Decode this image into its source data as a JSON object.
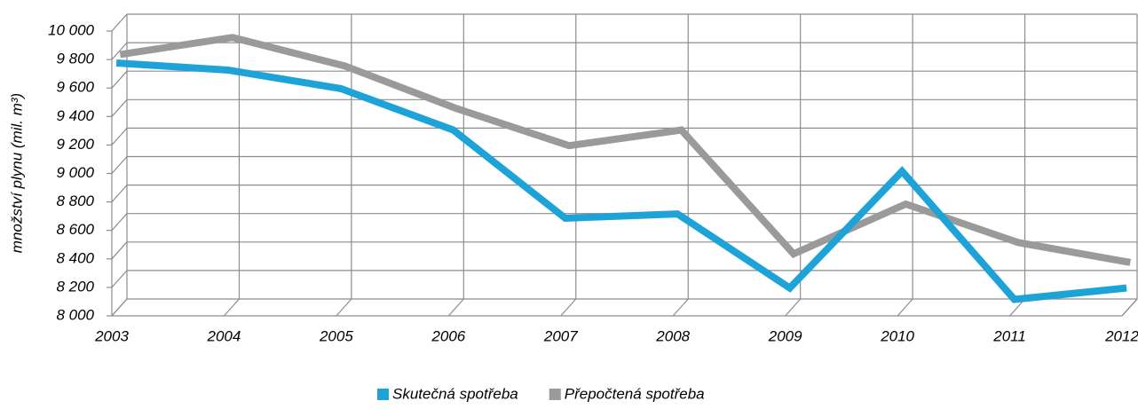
{
  "chart_data": {
    "type": "line",
    "y_label": "množství plynu (mil. m³)",
    "categories": [
      "2003",
      "2004",
      "2005",
      "2006",
      "2007",
      "2008",
      "2009",
      "2010",
      "2011",
      "2012"
    ],
    "series": [
      {
        "name": "Skutečná spotřeba",
        "color": "#1ea3d9",
        "values": [
          9740,
          9690,
          9560,
          9270,
          8650,
          8680,
          8160,
          8980,
          8080,
          8160
        ]
      },
      {
        "name": "Přepočtená spotřeba",
        "color": "#9a9a9a",
        "values": [
          9770,
          9890,
          9690,
          9390,
          9130,
          9240,
          8370,
          8720,
          8450,
          8310
        ]
      }
    ],
    "ylim": [
      8000,
      10000
    ],
    "yticks": [
      {
        "value": 8000,
        "label": "8 000"
      },
      {
        "value": 8200,
        "label": "8 200"
      },
      {
        "value": 8400,
        "label": "8 400"
      },
      {
        "value": 8600,
        "label": "8 600"
      },
      {
        "value": 8800,
        "label": "8 800"
      },
      {
        "value": 9000,
        "label": "9 000"
      },
      {
        "value": 9200,
        "label": "9 200"
      },
      {
        "value": 9400,
        "label": "9 400"
      },
      {
        "value": 9600,
        "label": "9 600"
      },
      {
        "value": 9800,
        "label": "9 800"
      },
      {
        "value": 10000,
        "label": "10 000"
      }
    ],
    "grid": true
  }
}
